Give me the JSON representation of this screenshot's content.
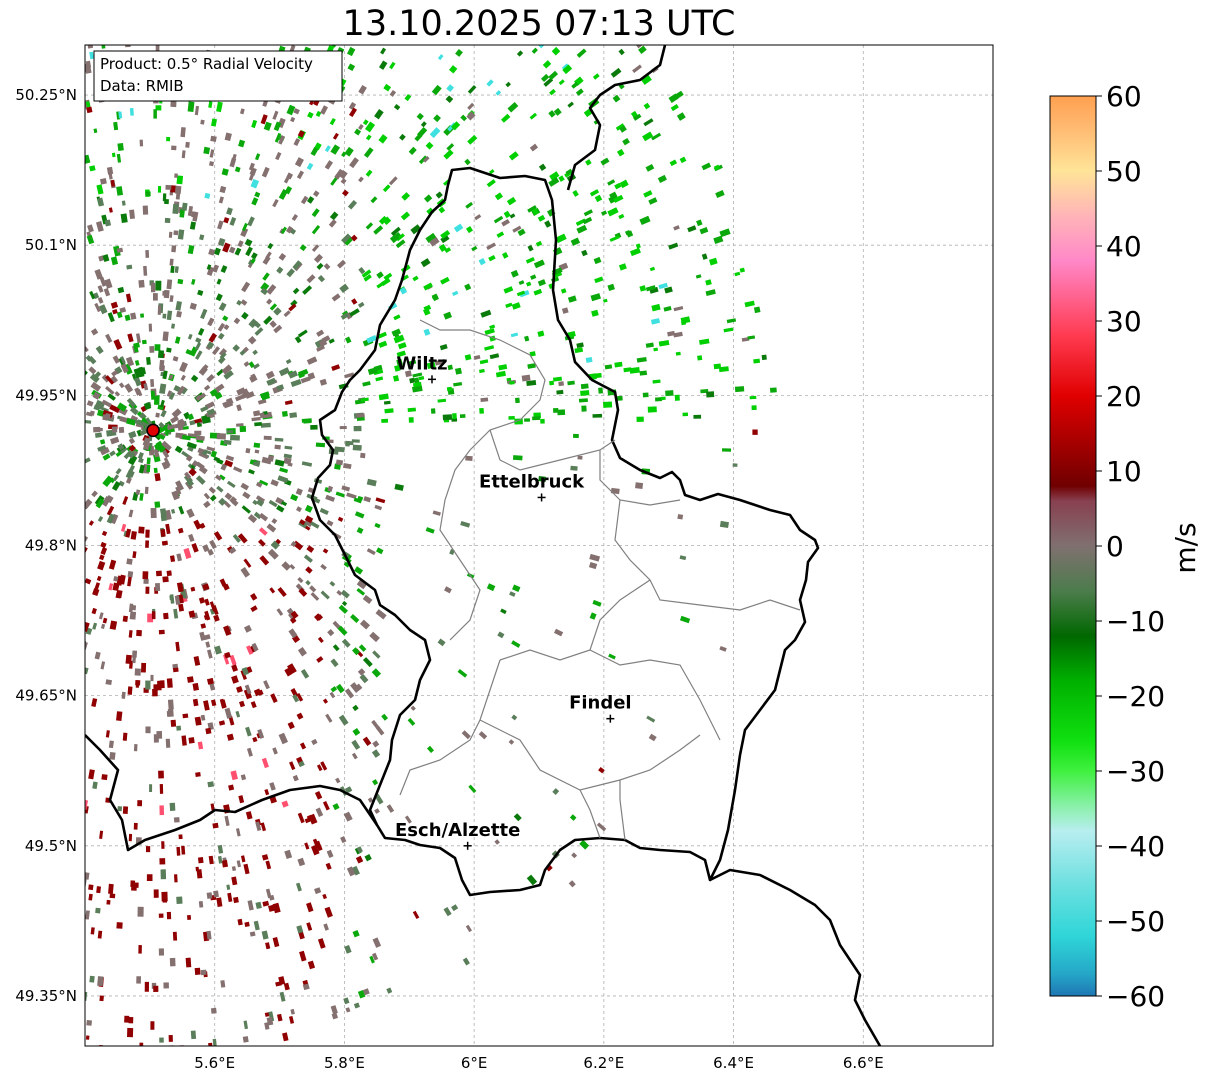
{
  "title": "13.10.2025 07:13 UTC",
  "info_box": {
    "line1": "Product: 0.5° Radial Velocity",
    "line2": "Data: RMIB"
  },
  "map": {
    "lon_range": [
      5.4,
      6.8
    ],
    "lat_range": [
      49.3,
      50.3
    ],
    "x_ticks": [
      {
        "v": 5.6,
        "label": "5.6°E"
      },
      {
        "v": 5.8,
        "label": "5.8°E"
      },
      {
        "v": 6.0,
        "label": "6°E"
      },
      {
        "v": 6.2,
        "label": "6.2°E"
      },
      {
        "v": 6.4,
        "label": "6.4°E"
      },
      {
        "v": 6.6,
        "label": "6.6°E"
      }
    ],
    "y_ticks": [
      {
        "v": 50.25,
        "label": "50.25°N"
      },
      {
        "v": 50.1,
        "label": "50.1°N"
      },
      {
        "v": 49.95,
        "label": "49.95°N"
      },
      {
        "v": 49.8,
        "label": "49.8°N"
      },
      {
        "v": 49.65,
        "label": "49.65°N"
      },
      {
        "v": 49.5,
        "label": "49.5°N"
      },
      {
        "v": 49.35,
        "label": "49.35°N"
      }
    ],
    "radar_site": {
      "lon": 5.505,
      "lat": 49.915
    },
    "cities": [
      {
        "name": "Wiltz",
        "lon": 5.935,
        "lat": 49.966
      },
      {
        "name": "Ettelbruck",
        "lon": 6.104,
        "lat": 49.848
      },
      {
        "name": "Findel",
        "lon": 6.21,
        "lat": 49.627
      },
      {
        "name": "Esch/Alzette",
        "lon": 5.99,
        "lat": 49.5
      }
    ]
  },
  "colorbar": {
    "label": "m/s",
    "vmin": -60,
    "vmax": 60,
    "ticks": [
      {
        "v": 60,
        "label": "60"
      },
      {
        "v": 50,
        "label": "50"
      },
      {
        "v": 40,
        "label": "40"
      },
      {
        "v": 30,
        "label": "30"
      },
      {
        "v": 20,
        "label": "20"
      },
      {
        "v": 10,
        "label": "10"
      },
      {
        "v": 0,
        "label": "0"
      },
      {
        "v": -10,
        "label": "−10"
      },
      {
        "v": -20,
        "label": "−20"
      },
      {
        "v": -30,
        "label": "−30"
      },
      {
        "v": -40,
        "label": "−40"
      },
      {
        "v": -50,
        "label": "−50"
      },
      {
        "v": -60,
        "label": "−60"
      }
    ],
    "stops": [
      {
        "v": -60,
        "color": "#1f77b4"
      },
      {
        "v": -57,
        "color": "#25a7c8"
      },
      {
        "v": -52,
        "color": "#2fd6d8"
      },
      {
        "v": -45,
        "color": "#6fe0e0"
      },
      {
        "v": -38,
        "color": "#b8eef0"
      },
      {
        "v": -35,
        "color": "#8ef0b0"
      },
      {
        "v": -30,
        "color": "#40f040"
      },
      {
        "v": -26,
        "color": "#10e010"
      },
      {
        "v": -18,
        "color": "#00b000"
      },
      {
        "v": -12,
        "color": "#006800"
      },
      {
        "v": -6,
        "color": "#4c7c4c"
      },
      {
        "v": 0,
        "color": "#807070"
      },
      {
        "v": 6,
        "color": "#884050"
      },
      {
        "v": 8,
        "color": "#700000"
      },
      {
        "v": 20,
        "color": "#e00000"
      },
      {
        "v": 28,
        "color": "#ff3a50"
      },
      {
        "v": 38,
        "color": "#ff88c8"
      },
      {
        "v": 44,
        "color": "#ffb4b8"
      },
      {
        "v": 50,
        "color": "#ffe498"
      },
      {
        "v": 56,
        "color": "#ffb870"
      },
      {
        "v": 60,
        "color": "#ffa050"
      }
    ]
  },
  "colors": {
    "border": "#000000",
    "canton": "#808080",
    "grid": "#b0b0b0",
    "radar_dot": "#e00000",
    "dark_red": "#900000",
    "gray": "#857070",
    "gray_green": "#5a7d5a",
    "green": "#0aa80a",
    "bright_green": "#00d000",
    "dark_green": "#0a7a0a",
    "cyan": "#40e0e0",
    "pink": "#ff5070"
  }
}
